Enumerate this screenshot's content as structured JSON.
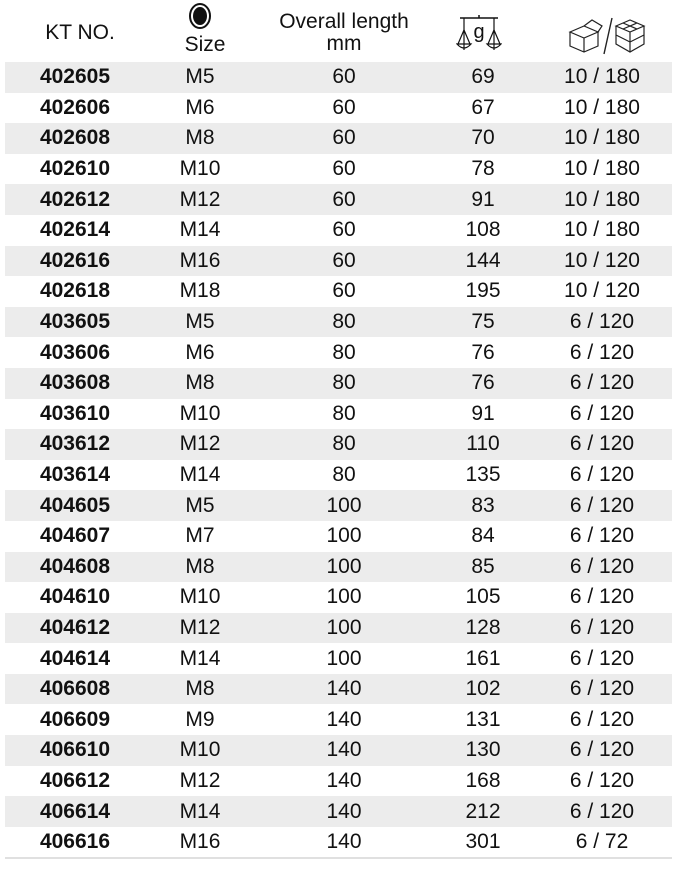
{
  "header": {
    "kt_no": "KT NO.",
    "size": "Size",
    "length_line1": "Overall length",
    "length_line2": "mm",
    "weight_unit": "g",
    "size_icon": "twelve-point-socket-icon",
    "weight_icon": "balance-scale-icon",
    "packing_icon": "box-carton-icon"
  },
  "rows": [
    [
      "402605",
      "M5",
      "60",
      "69",
      "10 / 180"
    ],
    [
      "402606",
      "M6",
      "60",
      "67",
      "10 / 180"
    ],
    [
      "402608",
      "M8",
      "60",
      "70",
      "10 / 180"
    ],
    [
      "402610",
      "M10",
      "60",
      "78",
      "10 / 180"
    ],
    [
      "402612",
      "M12",
      "60",
      "91",
      "10 / 180"
    ],
    [
      "402614",
      "M14",
      "60",
      "108",
      "10 / 180"
    ],
    [
      "402616",
      "M16",
      "60",
      "144",
      "10 / 120"
    ],
    [
      "402618",
      "M18",
      "60",
      "195",
      "10 / 120"
    ],
    [
      "403605",
      "M5",
      "80",
      "75",
      "6 / 120"
    ],
    [
      "403606",
      "M6",
      "80",
      "76",
      "6 / 120"
    ],
    [
      "403608",
      "M8",
      "80",
      "76",
      "6 / 120"
    ],
    [
      "403610",
      "M10",
      "80",
      "91",
      "6 / 120"
    ],
    [
      "403612",
      "M12",
      "80",
      "110",
      "6 / 120"
    ],
    [
      "403614",
      "M14",
      "80",
      "135",
      "6 / 120"
    ],
    [
      "404605",
      "M5",
      "100",
      "83",
      "6 / 120"
    ],
    [
      "404607",
      "M7",
      "100",
      "84",
      "6 / 120"
    ],
    [
      "404608",
      "M8",
      "100",
      "85",
      "6 / 120"
    ],
    [
      "404610",
      "M10",
      "100",
      "105",
      "6 / 120"
    ],
    [
      "404612",
      "M12",
      "100",
      "128",
      "6 / 120"
    ],
    [
      "404614",
      "M14",
      "100",
      "161",
      "6 / 120"
    ],
    [
      "406608",
      "M8",
      "140",
      "102",
      "6 / 120"
    ],
    [
      "406609",
      "M9",
      "140",
      "131",
      "6 / 120"
    ],
    [
      "406610",
      "M10",
      "140",
      "130",
      "6 / 120"
    ],
    [
      "406612",
      "M12",
      "140",
      "168",
      "6 / 120"
    ],
    [
      "406614",
      "M14",
      "140",
      "212",
      "6 / 120"
    ],
    [
      "406616",
      "M16",
      "140",
      "301",
      "6 / 72"
    ]
  ]
}
